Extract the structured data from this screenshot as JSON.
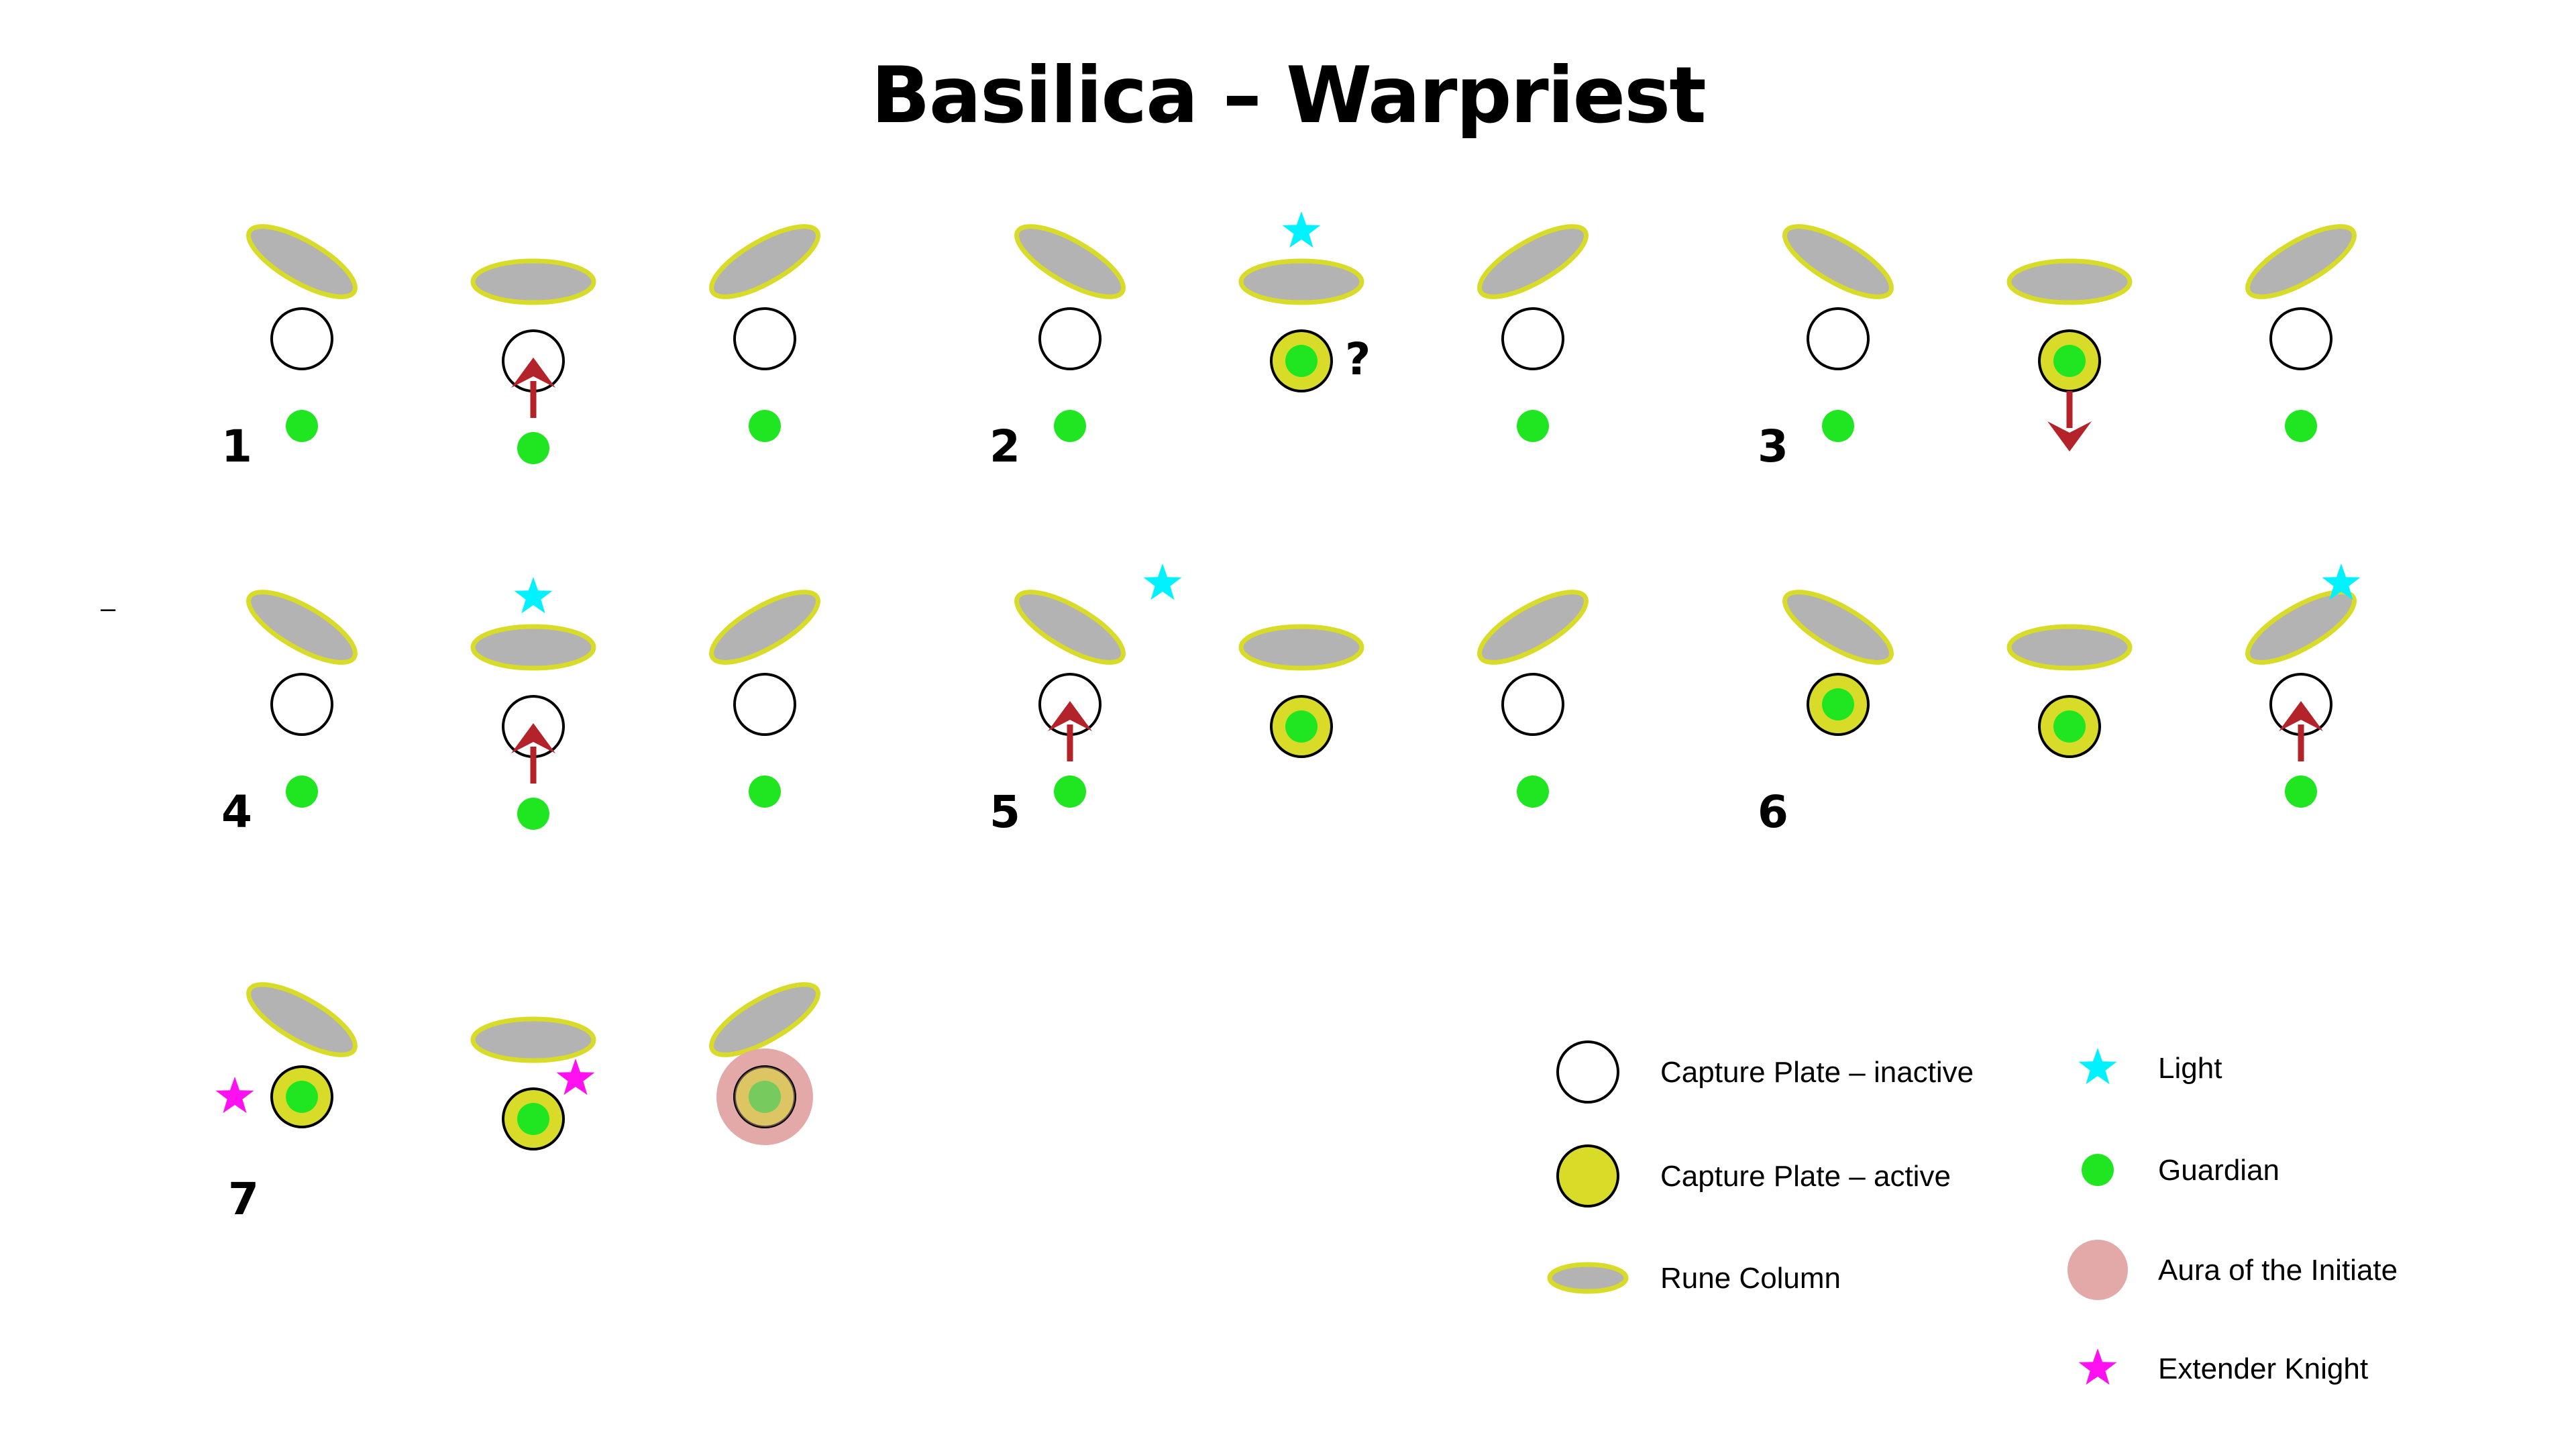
{
  "title": "Basilica – Warpriest",
  "stray_mark": "–",
  "colors": {
    "plate_inactive_fill": "#ffffff",
    "plate_active_fill": "#d8dc28",
    "column_fill": "#b3b3b3",
    "column_outline": "#d8dc28",
    "guardian": "#1fe620",
    "light": "#00f2ff",
    "aura": "#e3a8a8",
    "extender_knight": "#ff10f0",
    "arrow": "#b4232a"
  },
  "steps": [
    {
      "number": "1",
      "plates": [
        "inactive",
        "inactive",
        "inactive"
      ],
      "guardians": [
        "below",
        "below",
        "below"
      ],
      "lights": [],
      "arrows": [
        {
          "plate": 1,
          "dir": "up"
        }
      ],
      "question": false,
      "aura_plate": null,
      "knights": []
    },
    {
      "number": "2",
      "plates": [
        "inactive",
        "active",
        "inactive"
      ],
      "guardians": [
        "below",
        "on-plate",
        "below"
      ],
      "lights": [
        "above-column-1"
      ],
      "arrows": [],
      "question": true,
      "aura_plate": null,
      "knights": []
    },
    {
      "number": "3",
      "plates": [
        "inactive",
        "active",
        "inactive"
      ],
      "guardians": [
        "below",
        "on-plate",
        "below"
      ],
      "lights": [],
      "arrows": [
        {
          "plate": 1,
          "dir": "down"
        }
      ],
      "question": false,
      "aura_plate": null,
      "knights": []
    },
    {
      "number": "4",
      "plates": [
        "inactive",
        "inactive",
        "inactive"
      ],
      "guardians": [
        "below",
        "below",
        "below"
      ],
      "lights": [
        "above-column-1"
      ],
      "arrows": [
        {
          "plate": 1,
          "dir": "up"
        }
      ],
      "question": false,
      "aura_plate": null,
      "knights": []
    },
    {
      "number": "5",
      "plates": [
        "inactive",
        "active",
        "inactive"
      ],
      "guardians": [
        "below",
        "on-plate",
        "below"
      ],
      "lights": [
        "near-column-0"
      ],
      "arrows": [
        {
          "plate": 0,
          "dir": "up"
        }
      ],
      "question": false,
      "aura_plate": null,
      "knights": []
    },
    {
      "number": "6",
      "plates": [
        "active",
        "active",
        "inactive"
      ],
      "guardians": [
        "on-plate",
        "on-plate",
        "below"
      ],
      "lights": [
        "near-column-2"
      ],
      "arrows": [
        {
          "plate": 2,
          "dir": "up"
        }
      ],
      "question": false,
      "aura_plate": null,
      "knights": []
    },
    {
      "number": "7",
      "plates": [
        "active",
        "active",
        "active"
      ],
      "guardians": [
        "on-plate",
        "on-plate",
        "on-plate"
      ],
      "lights": [],
      "arrows": [],
      "question": false,
      "aura_plate": 2,
      "knights": [
        "left-of-plate-0",
        "right-of-plate-1"
      ]
    }
  ],
  "question_mark": "?",
  "legend": [
    {
      "label": "Capture Plate – inactive",
      "icon": "capture-plate-inactive-icon"
    },
    {
      "label": "Capture Plate – active",
      "icon": "capture-plate-active-icon"
    },
    {
      "label": "Rune Column",
      "icon": "rune-column-icon"
    },
    {
      "label": "Light",
      "icon": "light-star-icon"
    },
    {
      "label": "Guardian",
      "icon": "guardian-dot-icon"
    },
    {
      "label": "Aura of the Initiate",
      "icon": "aura-circle-icon"
    },
    {
      "label": "Extender Knight",
      "icon": "extender-knight-star-icon"
    }
  ]
}
